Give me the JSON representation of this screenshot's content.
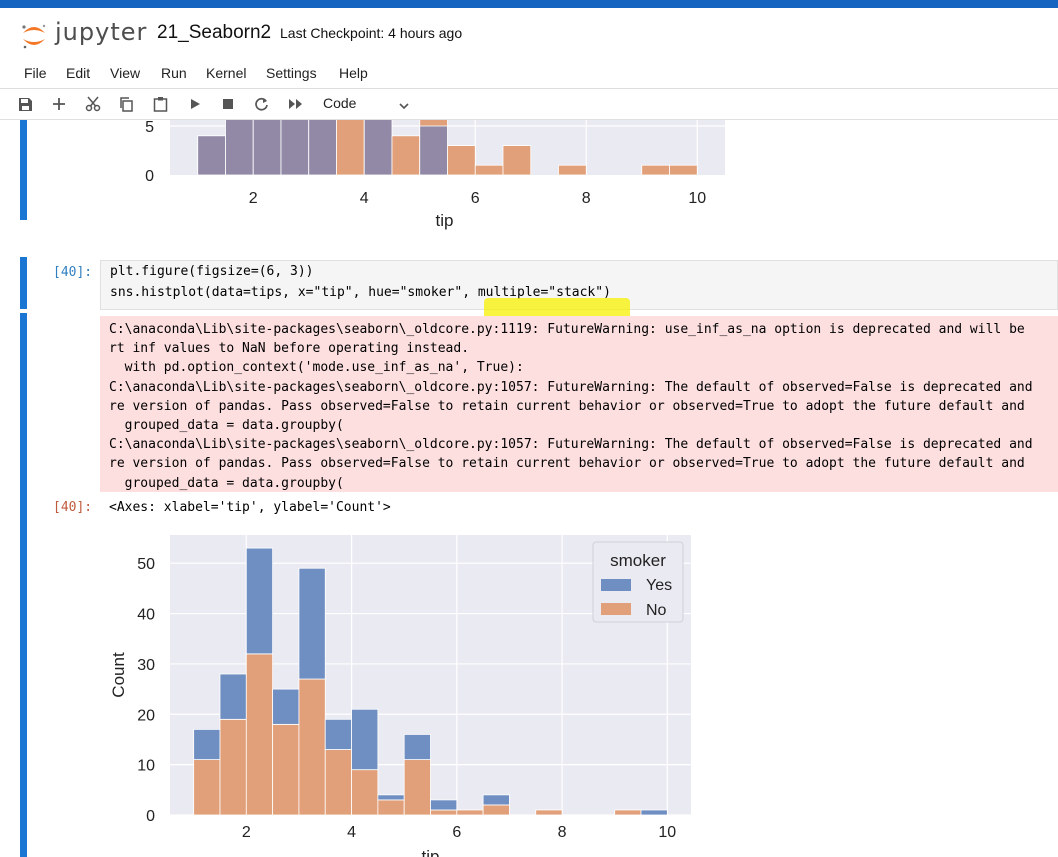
{
  "header": {
    "logo_text": "jupyter",
    "notebook_name": "21_Seaborn2",
    "checkpoint": "Last Checkpoint: 4 hours ago"
  },
  "menu": [
    "File",
    "Edit",
    "View",
    "Run",
    "Kernel",
    "Settings",
    "Help"
  ],
  "toolbar": {
    "icons": [
      "save-icon",
      "add-cell-icon",
      "cut-icon",
      "copy-icon",
      "paste-icon",
      "run-icon",
      "stop-icon",
      "restart-icon",
      "fast-forward-icon"
    ],
    "cell_type": "Code"
  },
  "cell": {
    "input_prompt": "[40]:",
    "output_prompt": "[40]:",
    "code_line1": "plt.figure(figsize=(6, 3))",
    "code_line2": "sns.histplot(data=tips, x=\"tip\", hue=\"smoker\", multiple=\"stack\")",
    "stderr_lines": [
      "C:\\anaconda\\Lib\\site-packages\\seaborn\\_oldcore.py:1119: FutureWarning: use_inf_as_na option is deprecated and will be",
      "rt inf values to NaN before operating instead.",
      "  with pd.option_context('mode.use_inf_as_na', True):",
      "C:\\anaconda\\Lib\\site-packages\\seaborn\\_oldcore.py:1057: FutureWarning: The default of observed=False is deprecated and",
      "re version of pandas. Pass observed=False to retain current behavior or observed=True to adopt the future default and",
      "  grouped_data = data.groupby(",
      "C:\\anaconda\\Lib\\site-packages\\seaborn\\_oldcore.py:1057: FutureWarning: The default of observed=False is deprecated and",
      "re version of pandas. Pass observed=False to retain current behavior or observed=True to adopt the future default and",
      "  grouped_data = data.groupby("
    ],
    "output_text": "<Axes: xlabel='tip', ylabel='Count'>"
  },
  "colors": {
    "yes": "#6f8ec2",
    "no": "#e1a07a",
    "axes_bg": "#eaeaf2",
    "stderr_bg": "#fddfe0",
    "cell_bar": "#1976d2"
  },
  "chart_data": [
    {
      "type": "bar",
      "xlabel": "tip",
      "ylabel": "Count",
      "xticks": [
        2,
        4,
        6,
        8,
        10
      ],
      "yticks": [
        0,
        5
      ],
      "xlim": [
        0.5,
        10.5
      ],
      "note": "top of previous output, partially scrolled out of view"
    },
    {
      "type": "bar",
      "stacked": true,
      "xlabel": "tip",
      "ylabel": "Count",
      "xticks": [
        2,
        4,
        6,
        8,
        10
      ],
      "yticks": [
        0,
        10,
        20,
        30,
        40,
        50
      ],
      "xlim": [
        0.55,
        10.45
      ],
      "ylim": [
        0,
        55.6
      ],
      "bin_edges": [
        1.0,
        1.5,
        2.0,
        2.5,
        3.0,
        3.5,
        4.0,
        4.5,
        5.0,
        5.5,
        6.0,
        6.5,
        7.0,
        7.5,
        8.0,
        8.5,
        9.0,
        9.5,
        10.0
      ],
      "series": [
        {
          "name": "No",
          "values": [
            11,
            19,
            32,
            18,
            27,
            13,
            9,
            3,
            11,
            1,
            1,
            2,
            0,
            1,
            0,
            0,
            1,
            0
          ]
        },
        {
          "name": "Yes",
          "values": [
            6,
            9,
            21,
            7,
            22,
            6,
            12,
            1,
            5,
            2,
            0,
            2,
            0,
            0,
            0,
            0,
            0,
            1
          ]
        }
      ],
      "legend": {
        "title": "smoker",
        "entries": [
          "Yes",
          "No"
        ],
        "position": "upper-right"
      }
    }
  ]
}
